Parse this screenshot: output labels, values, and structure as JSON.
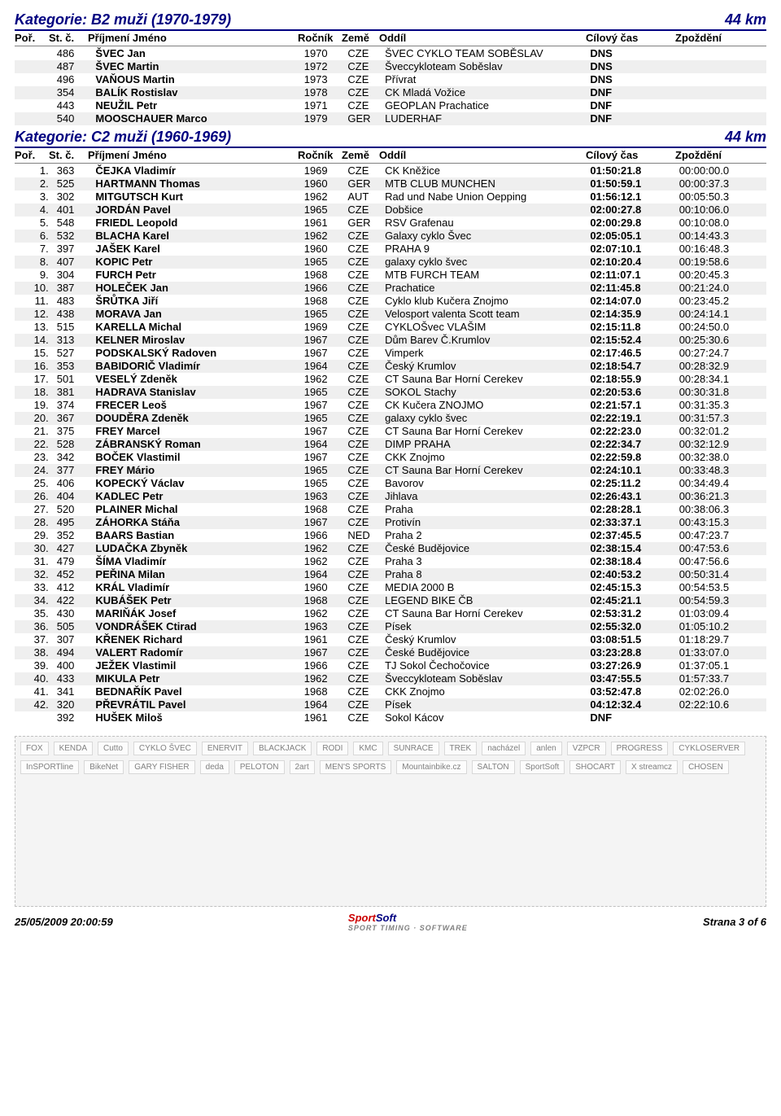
{
  "page": {
    "timestamp": "25/05/2009 20:00:59",
    "page_label": "Strana 3 of 6",
    "logo_sport": "Sport",
    "logo_soft": "Soft",
    "logo_sub": "SPORT TIMING · SOFTWARE"
  },
  "headers": {
    "por": "Poř.",
    "st": "St. č.",
    "name": "Příjmení Jméno",
    "year": "Ročník",
    "country": "Země",
    "club": "Oddíl",
    "time": "Cílový čas",
    "delay": "Zpoždění"
  },
  "categories": [
    {
      "title": "Kategorie: B2 muži (1970-1979)",
      "distance": "44 km",
      "rows": [
        {
          "por": "",
          "st": "486",
          "name": "ŠVEC Jan",
          "year": "1970",
          "ctry": "CZE",
          "club": "ŠVEC CYKLO TEAM SOBĚSLAV",
          "time": "DNS",
          "delay": ""
        },
        {
          "por": "",
          "st": "487",
          "name": "ŠVEC Martin",
          "year": "1972",
          "ctry": "CZE",
          "club": "Šveccykloteam Soběslav",
          "time": "DNS",
          "delay": ""
        },
        {
          "por": "",
          "st": "496",
          "name": "VAŇOUS Martin",
          "year": "1973",
          "ctry": "CZE",
          "club": "Přívrat",
          "time": "DNS",
          "delay": ""
        },
        {
          "por": "",
          "st": "354",
          "name": "BALÍK Rostislav",
          "year": "1978",
          "ctry": "CZE",
          "club": "CK Mladá Vožice",
          "time": "DNF",
          "delay": ""
        },
        {
          "por": "",
          "st": "443",
          "name": "NEUŽIL Petr",
          "year": "1971",
          "ctry": "CZE",
          "club": "GEOPLAN Prachatice",
          "time": "DNF",
          "delay": ""
        },
        {
          "por": "",
          "st": "540",
          "name": "MOOSCHAUER Marco",
          "year": "1979",
          "ctry": "GER",
          "club": "LUDERHAF",
          "time": "DNF",
          "delay": ""
        }
      ]
    },
    {
      "title": "Kategorie: C2 muži (1960-1969)",
      "distance": "44 km",
      "rows": [
        {
          "por": "1.",
          "st": "363",
          "name": "ČEJKA Vladimír",
          "year": "1969",
          "ctry": "CZE",
          "club": "CK Kněžice",
          "time": "01:50:21.8",
          "delay": "00:00:00.0"
        },
        {
          "por": "2.",
          "st": "525",
          "name": "HARTMANN Thomas",
          "year": "1960",
          "ctry": "GER",
          "club": "MTB CLUB MUNCHEN",
          "time": "01:50:59.1",
          "delay": "00:00:37.3"
        },
        {
          "por": "3.",
          "st": "302",
          "name": "MITGUTSCH Kurt",
          "year": "1962",
          "ctry": "AUT",
          "club": "Rad und Nabe Union Oepping",
          "time": "01:56:12.1",
          "delay": "00:05:50.3"
        },
        {
          "por": "4.",
          "st": "401",
          "name": "JORDÁN Pavel",
          "year": "1965",
          "ctry": "CZE",
          "club": "Dobšice",
          "time": "02:00:27.8",
          "delay": "00:10:06.0"
        },
        {
          "por": "5.",
          "st": "548",
          "name": "FRIEDL Leopold",
          "year": "1961",
          "ctry": "GER",
          "club": "RSV Grafenau",
          "time": "02:00:29.8",
          "delay": "00:10:08.0"
        },
        {
          "por": "6.",
          "st": "532",
          "name": "BLACHA Karel",
          "year": "1962",
          "ctry": "CZE",
          "club": "Galaxy cyklo Švec",
          "time": "02:05:05.1",
          "delay": "00:14:43.3"
        },
        {
          "por": "7.",
          "st": "397",
          "name": "JAŠEK Karel",
          "year": "1960",
          "ctry": "CZE",
          "club": "PRAHA 9",
          "time": "02:07:10.1",
          "delay": "00:16:48.3"
        },
        {
          "por": "8.",
          "st": "407",
          "name": "KOPIC Petr",
          "year": "1965",
          "ctry": "CZE",
          "club": "galaxy cyklo švec",
          "time": "02:10:20.4",
          "delay": "00:19:58.6"
        },
        {
          "por": "9.",
          "st": "304",
          "name": "FURCH Petr",
          "year": "1968",
          "ctry": "CZE",
          "club": "MTB FURCH TEAM",
          "time": "02:11:07.1",
          "delay": "00:20:45.3"
        },
        {
          "por": "10.",
          "st": "387",
          "name": "HOLEČEK Jan",
          "year": "1966",
          "ctry": "CZE",
          "club": "Prachatice",
          "time": "02:11:45.8",
          "delay": "00:21:24.0"
        },
        {
          "por": "11.",
          "st": "483",
          "name": "ŠRŮTKA Jiří",
          "year": "1968",
          "ctry": "CZE",
          "club": "Cyklo klub Kučera Znojmo",
          "time": "02:14:07.0",
          "delay": "00:23:45.2"
        },
        {
          "por": "12.",
          "st": "438",
          "name": "MORAVA Jan",
          "year": "1965",
          "ctry": "CZE",
          "club": "Velosport valenta Scott team",
          "time": "02:14:35.9",
          "delay": "00:24:14.1"
        },
        {
          "por": "13.",
          "st": "515",
          "name": "KARELLA Michal",
          "year": "1969",
          "ctry": "CZE",
          "club": "CYKLOŠvec VLAŠIM",
          "time": "02:15:11.8",
          "delay": "00:24:50.0"
        },
        {
          "por": "14.",
          "st": "313",
          "name": "KELNER Miroslav",
          "year": "1967",
          "ctry": "CZE",
          "club": "Dům Barev Č.Krumlov",
          "time": "02:15:52.4",
          "delay": "00:25:30.6"
        },
        {
          "por": "15.",
          "st": "527",
          "name": "PODSKALSKÝ Radoven",
          "year": "1967",
          "ctry": "CZE",
          "club": "Vimperk",
          "time": "02:17:46.5",
          "delay": "00:27:24.7"
        },
        {
          "por": "16.",
          "st": "353",
          "name": "BABIDORIČ Vladimír",
          "year": "1964",
          "ctry": "CZE",
          "club": "Český Krumlov",
          "time": "02:18:54.7",
          "delay": "00:28:32.9"
        },
        {
          "por": "17.",
          "st": "501",
          "name": "VESELÝ Zdeněk",
          "year": "1962",
          "ctry": "CZE",
          "club": "CT Sauna Bar Horní Cerekev",
          "time": "02:18:55.9",
          "delay": "00:28:34.1"
        },
        {
          "por": "18.",
          "st": "381",
          "name": "HADRAVA Stanislav",
          "year": "1965",
          "ctry": "CZE",
          "club": "SOKOL Stachy",
          "time": "02:20:53.6",
          "delay": "00:30:31.8"
        },
        {
          "por": "19.",
          "st": "374",
          "name": "FRECER Leoš",
          "year": "1967",
          "ctry": "CZE",
          "club": "CK Kučera ZNOJMO",
          "time": "02:21:57.1",
          "delay": "00:31:35.3"
        },
        {
          "por": "20.",
          "st": "367",
          "name": "DOUDĚRA Zdeněk",
          "year": "1965",
          "ctry": "CZE",
          "club": "galaxy cyklo švec",
          "time": "02:22:19.1",
          "delay": "00:31:57.3"
        },
        {
          "por": "21.",
          "st": "375",
          "name": "FREY Marcel",
          "year": "1967",
          "ctry": "CZE",
          "club": "CT Sauna Bar Horní Cerekev",
          "time": "02:22:23.0",
          "delay": "00:32:01.2"
        },
        {
          "por": "22.",
          "st": "528",
          "name": "ZÁBRANSKÝ Roman",
          "year": "1964",
          "ctry": "CZE",
          "club": "DIMP PRAHA",
          "time": "02:22:34.7",
          "delay": "00:32:12.9"
        },
        {
          "por": "23.",
          "st": "342",
          "name": "BOČEK Vlastimil",
          "year": "1967",
          "ctry": "CZE",
          "club": "CKK Znojmo",
          "time": "02:22:59.8",
          "delay": "00:32:38.0"
        },
        {
          "por": "24.",
          "st": "377",
          "name": "FREY Mário",
          "year": "1965",
          "ctry": "CZE",
          "club": "CT Sauna Bar Horní Cerekev",
          "time": "02:24:10.1",
          "delay": "00:33:48.3"
        },
        {
          "por": "25.",
          "st": "406",
          "name": "KOPECKÝ Václav",
          "year": "1965",
          "ctry": "CZE",
          "club": "Bavorov",
          "time": "02:25:11.2",
          "delay": "00:34:49.4"
        },
        {
          "por": "26.",
          "st": "404",
          "name": "KADLEC Petr",
          "year": "1963",
          "ctry": "CZE",
          "club": "Jihlava",
          "time": "02:26:43.1",
          "delay": "00:36:21.3"
        },
        {
          "por": "27.",
          "st": "520",
          "name": "PLAINER Michal",
          "year": "1968",
          "ctry": "CZE",
          "club": "Praha",
          "time": "02:28:28.1",
          "delay": "00:38:06.3"
        },
        {
          "por": "28.",
          "st": "495",
          "name": "ZÁHORKA Stáňa",
          "year": "1967",
          "ctry": "CZE",
          "club": "Protivín",
          "time": "02:33:37.1",
          "delay": "00:43:15.3"
        },
        {
          "por": "29.",
          "st": "352",
          "name": "BAARS Bastian",
          "year": "1966",
          "ctry": "NED",
          "club": "Praha 2",
          "time": "02:37:45.5",
          "delay": "00:47:23.7"
        },
        {
          "por": "30.",
          "st": "427",
          "name": "LUDAČKA Zbyněk",
          "year": "1962",
          "ctry": "CZE",
          "club": "České Budějovice",
          "time": "02:38:15.4",
          "delay": "00:47:53.6"
        },
        {
          "por": "31.",
          "st": "479",
          "name": "ŠÍMA Vladimír",
          "year": "1962",
          "ctry": "CZE",
          "club": "Praha 3",
          "time": "02:38:18.4",
          "delay": "00:47:56.6"
        },
        {
          "por": "32.",
          "st": "452",
          "name": "PEŘINA Milan",
          "year": "1964",
          "ctry": "CZE",
          "club": "Praha 8",
          "time": "02:40:53.2",
          "delay": "00:50:31.4"
        },
        {
          "por": "33.",
          "st": "412",
          "name": "KRÁL Vladimír",
          "year": "1960",
          "ctry": "CZE",
          "club": "MEDIA 2000 B",
          "time": "02:45:15.3",
          "delay": "00:54:53.5"
        },
        {
          "por": "34.",
          "st": "422",
          "name": "KUBÁŠEK Petr",
          "year": "1968",
          "ctry": "CZE",
          "club": "LEGEND BIKE ČB",
          "time": "02:45:21.1",
          "delay": "00:54:59.3"
        },
        {
          "por": "35.",
          "st": "430",
          "name": "MARIŇÁK Josef",
          "year": "1962",
          "ctry": "CZE",
          "club": "CT Sauna Bar Horní Cerekev",
          "time": "02:53:31.2",
          "delay": "01:03:09.4"
        },
        {
          "por": "36.",
          "st": "505",
          "name": "VONDRÁŠEK Ctirad",
          "year": "1963",
          "ctry": "CZE",
          "club": "Písek",
          "time": "02:55:32.0",
          "delay": "01:05:10.2"
        },
        {
          "por": "37.",
          "st": "307",
          "name": "KŘENEK Richard",
          "year": "1961",
          "ctry": "CZE",
          "club": "Český Krumlov",
          "time": "03:08:51.5",
          "delay": "01:18:29.7"
        },
        {
          "por": "38.",
          "st": "494",
          "name": "VALERT Radomír",
          "year": "1967",
          "ctry": "CZE",
          "club": "České Budějovice",
          "time": "03:23:28.8",
          "delay": "01:33:07.0"
        },
        {
          "por": "39.",
          "st": "400",
          "name": "JEŽEK Vlastimil",
          "year": "1966",
          "ctry": "CZE",
          "club": "TJ Sokol Čechočovice",
          "time": "03:27:26.9",
          "delay": "01:37:05.1"
        },
        {
          "por": "40.",
          "st": "433",
          "name": "MIKULA Petr",
          "year": "1962",
          "ctry": "CZE",
          "club": "Šveccykloteam Soběslav",
          "time": "03:47:55.5",
          "delay": "01:57:33.7"
        },
        {
          "por": "41.",
          "st": "341",
          "name": "BEDNAŘÍK Pavel",
          "year": "1968",
          "ctry": "CZE",
          "club": "CKK Znojmo",
          "time": "03:52:47.8",
          "delay": "02:02:26.0"
        },
        {
          "por": "42.",
          "st": "320",
          "name": "PŘEVRÁTIL Pavel",
          "year": "1964",
          "ctry": "CZE",
          "club": "Písek",
          "time": "04:12:32.4",
          "delay": "02:22:10.6"
        },
        {
          "por": "",
          "st": "392",
          "name": "HUŠEK Miloš",
          "year": "1961",
          "ctry": "CZE",
          "club": "Sokol Kácov",
          "time": "DNF",
          "delay": ""
        }
      ]
    }
  ],
  "sponsors": [
    "FOX",
    "KENDA",
    "Cutto",
    "CYKLO ŠVEC",
    "ENERVIT",
    "BLACKJACK",
    "RODI",
    "KMC",
    "SUNRACE",
    "TREK",
    "nacházel",
    "anlen",
    "VZPCR",
    "PROGRESS",
    "CYKLOSERVER",
    "InSPORTline",
    "BikeNet",
    "GARY FISHER",
    "deda",
    "PELOTON",
    "2art",
    "MEN'S SPORTS",
    "Mountainbike.cz",
    "SALTON",
    "SportSoft",
    "SHOCART",
    "X streamcz",
    "CHOSEN"
  ]
}
